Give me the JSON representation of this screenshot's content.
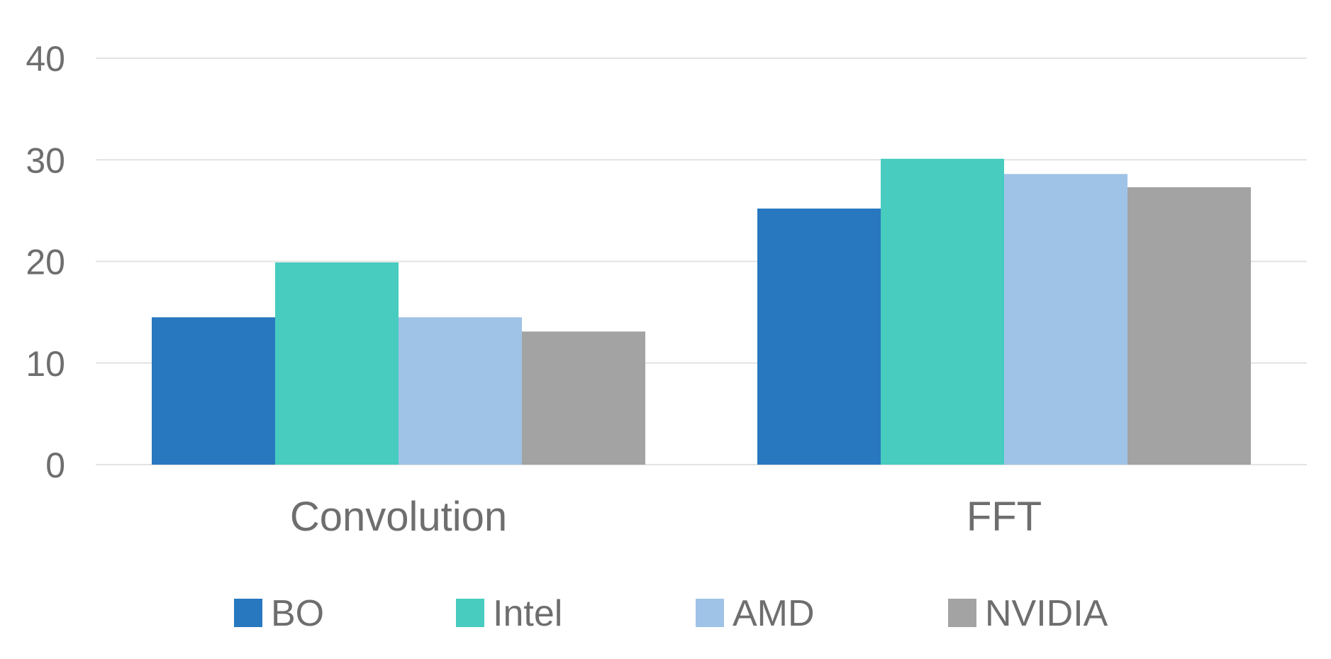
{
  "chart_data": {
    "type": "bar",
    "title": "",
    "xlabel": "",
    "ylabel": "",
    "ylim": [
      0,
      40
    ],
    "yticks": [
      0,
      10,
      20,
      30,
      40
    ],
    "grid": true,
    "legend_position": "bottom",
    "categories": [
      "Convolution",
      "FFT"
    ],
    "series": [
      {
        "name": "BO",
        "color": "#2878c0",
        "values": [
          14.5,
          25.2
        ]
      },
      {
        "name": "Intel",
        "color": "#47ccbf",
        "values": [
          19.9,
          30.1
        ]
      },
      {
        "name": "AMD",
        "color": "#9fc3e6",
        "values": [
          14.5,
          28.6
        ]
      },
      {
        "name": "NVIDIA",
        "color": "#a3a3a3",
        "values": [
          13.1,
          27.3
        ]
      }
    ]
  }
}
